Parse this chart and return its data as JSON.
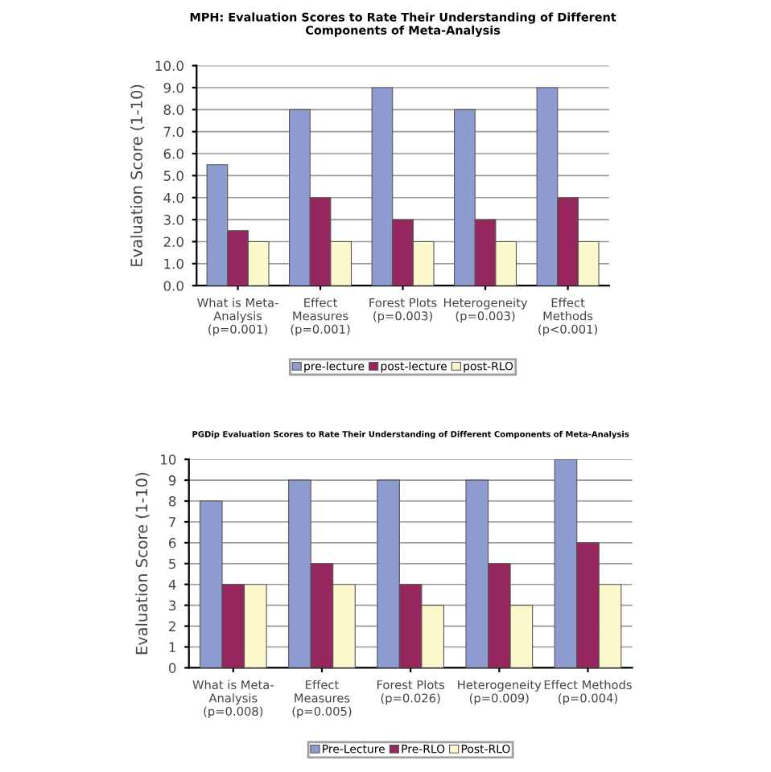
{
  "chart_data": [
    {
      "type": "bar",
      "title": "MPH: Evaluation Scores to Rate Their Understanding of Different\nComponents of Meta-Analysis",
      "ylabel": "Evaluation Score (1-10)",
      "categories": [
        "What is Meta-\nAnalysis\n(p=0.001)",
        "Effect\nMeasures\n(p=0.001)",
        "Forest Plots\n(p=0.003)",
        "Heterogeneity\n(p=0.003)",
        "Effect\nMethods\n(p<0.001)"
      ],
      "series": [
        {
          "name": "pre-lecture",
          "color": "#8e9bd0",
          "values": [
            5.5,
            8,
            9,
            8,
            9
          ]
        },
        {
          "name": "post-lecture",
          "color": "#96275e",
          "values": [
            2.5,
            4,
            3,
            3,
            4
          ]
        },
        {
          "name": "post-RLO",
          "color": "#fcf8cc",
          "values": [
            2,
            2,
            2,
            2,
            2
          ]
        }
      ],
      "ylim": [
        0,
        10
      ],
      "yticks": [
        {
          "value": 0,
          "label": "0.0"
        },
        {
          "value": 1,
          "label": "1.0"
        },
        {
          "value": 2,
          "label": "2.0"
        },
        {
          "value": 3,
          "label": "3.0"
        },
        {
          "value": 4,
          "label": "4.0"
        },
        {
          "value": 5,
          "label": "5.0"
        },
        {
          "value": 6,
          "label": "6.0"
        },
        {
          "value": 7,
          "label": "7.0"
        },
        {
          "value": 8,
          "label": "8.0"
        },
        {
          "value": 9,
          "label": "9.0"
        },
        {
          "value": 10,
          "label": "10.0"
        }
      ],
      "grid": "y",
      "legend": "bottom"
    },
    {
      "type": "bar",
      "title": "PGDip Evaluation Scores to Rate Their Understanding of Different Components of Meta-Analysis",
      "ylabel": "Evaluation Score (1-10)",
      "categories": [
        "What is Meta-\nAnalysis\n(p=0.008)",
        "Effect\nMeasures\n(p=0.005)",
        "Forest Plots\n(p=0.026)",
        "Heterogeneity\n(p=0.009)",
        "Effect Methods\n(p=0.004)"
      ],
      "series": [
        {
          "name": "Pre-Lecture",
          "color": "#8e9bd0",
          "values": [
            8,
            9,
            9,
            9,
            10
          ]
        },
        {
          "name": "Pre-RLO",
          "color": "#96275e",
          "values": [
            4,
            5,
            4,
            5,
            6
          ]
        },
        {
          "name": "Post-RLO",
          "color": "#fcf8cc",
          "values": [
            4,
            4,
            3,
            3,
            4
          ]
        }
      ],
      "ylim": [
        0,
        10
      ],
      "yticks": [
        0,
        1,
        2,
        3,
        4,
        5,
        6,
        7,
        8,
        9,
        10
      ],
      "grid": "y",
      "legend": "bottom"
    }
  ]
}
